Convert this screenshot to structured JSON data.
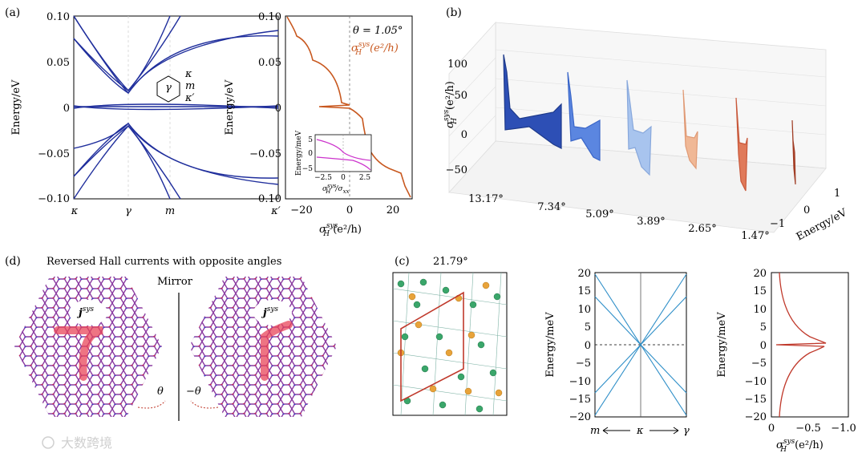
{
  "panel_labels": {
    "a": "(a)",
    "b": "(b)",
    "c": "(c)",
    "d": "(d)"
  },
  "panel_a_bands": {
    "ylabel": "Energy/eV",
    "yticks": [
      "0.10",
      "0.05",
      "0",
      "−0.05",
      "−0.10"
    ],
    "xticks": [
      "κ",
      "γ",
      "m",
      "κ′"
    ],
    "inset_center": "γ",
    "inset_labels": [
      "κ",
      "m",
      "κ′"
    ]
  },
  "panel_a_hall": {
    "ylabel": "Energy/eV",
    "xlabel": "σ",
    "xlabel_sup": "sys",
    "xlabel_sub": "H",
    "xlabel_unit": " (e²/h)",
    "xticks": [
      "−20",
      "0",
      "20"
    ],
    "yticks": [
      "0.10",
      "0.05",
      "0",
      "−0.05",
      "−0.10"
    ],
    "theta_label": "θ = 1.05°",
    "curve_label": "σ",
    "curve_label_sup": "sys",
    "curve_label_sub": "H",
    "curve_label_unit": "(e²/h)",
    "inset": {
      "ylabel": "Energy/meV",
      "yticks": [
        "5",
        "0",
        "−5"
      ],
      "xticks": [
        "−2.5",
        "0",
        "2.5"
      ],
      "xlabel": "σ",
      "xlabel_sup": "sys",
      "xlabel_sub": "H",
      "xlabel_tail": "/σ",
      "xlabel_tail_sub": "xx"
    }
  },
  "panel_b": {
    "zlabel": "σ",
    "zlabel_sup": "sys",
    "zlabel_sub": "H",
    "zlabel_unit": "(e²/h)",
    "zticks": [
      "100",
      "50",
      "0",
      "−50"
    ],
    "angles": [
      "13.17°",
      "7.34°",
      "5.09°",
      "3.89°",
      "2.65°",
      "1.47°"
    ],
    "energy_label": "Energy/eV",
    "energy_ticks": [
      "1",
      "0",
      "−1"
    ],
    "colors": [
      "#2d4fb5",
      "#5b86e0",
      "#a8c4ee",
      "#f0b896",
      "#e07a5a",
      "#b8492f"
    ]
  },
  "panel_c": {
    "angle": "21.79°",
    "bands_ylabel": "Energy/meV",
    "bands_yticks": [
      "20",
      "15",
      "10",
      "5",
      "0",
      "−5",
      "−10",
      "−15",
      "−20"
    ],
    "bands_xticks": [
      "m",
      "κ",
      "γ"
    ],
    "hall_ylabel": "Energy/meV",
    "hall_yticks": [
      "20",
      "15",
      "10",
      "5",
      "0",
      "−5",
      "−10",
      "−15",
      "−20"
    ],
    "hall_xticks": [
      "0",
      "−0.5",
      "−1.0"
    ],
    "hall_xlabel": "σ",
    "hall_xlabel_sup": "sys",
    "hall_xlabel_sub": "H",
    "hall_xlabel_unit": "(e²/h)"
  },
  "panel_d": {
    "title": "Reversed Hall currents with opposite angles",
    "mirror": "Mirror",
    "current_label": "j",
    "current_sup": "sys",
    "theta_left": "θ",
    "theta_right": "−θ"
  },
  "watermark": "大数跨境"
}
